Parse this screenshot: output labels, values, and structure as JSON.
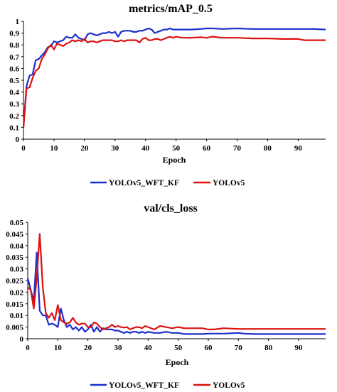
{
  "chart_data": [
    {
      "type": "line",
      "title": "metrics/mAP_0.5",
      "xlabel": "Epoch",
      "ylabel": "",
      "xlim": [
        0,
        99
      ],
      "ylim": [
        0,
        1
      ],
      "xticks": [
        0,
        10,
        20,
        30,
        40,
        50,
        60,
        70,
        80,
        90
      ],
      "yticks": [
        0,
        0.1,
        0.2,
        0.3,
        0.4,
        0.5,
        0.6,
        0.7,
        0.8,
        0.9,
        1
      ],
      "grid": false,
      "legend_position": "bottom",
      "series": [
        {
          "name": "YOLOv5_WFT_KF",
          "color": "#1c2fcc",
          "points": [
            [
              0,
              0.1
            ],
            [
              1,
              0.45
            ],
            [
              2,
              0.54
            ],
            [
              3,
              0.55
            ],
            [
              4,
              0.67
            ],
            [
              5,
              0.68
            ],
            [
              6,
              0.71
            ],
            [
              7,
              0.74
            ],
            [
              8,
              0.78
            ],
            [
              9,
              0.79
            ],
            [
              10,
              0.83
            ],
            [
              11,
              0.82
            ],
            [
              12,
              0.83
            ],
            [
              13,
              0.84
            ],
            [
              14,
              0.87
            ],
            [
              15,
              0.86
            ],
            [
              16,
              0.86
            ],
            [
              17,
              0.89
            ],
            [
              18,
              0.86
            ],
            [
              19,
              0.85
            ],
            [
              20,
              0.84
            ],
            [
              21,
              0.89
            ],
            [
              22,
              0.9
            ],
            [
              23,
              0.89
            ],
            [
              24,
              0.88
            ],
            [
              25,
              0.89
            ],
            [
              26,
              0.9
            ],
            [
              27,
              0.9
            ],
            [
              28,
              0.91
            ],
            [
              29,
              0.9
            ],
            [
              30,
              0.91
            ],
            [
              31,
              0.87
            ],
            [
              32,
              0.91
            ],
            [
              33,
              0.92
            ],
            [
              34,
              0.92
            ],
            [
              35,
              0.92
            ],
            [
              36,
              0.91
            ],
            [
              37,
              0.91
            ],
            [
              38,
              0.92
            ],
            [
              39,
              0.92
            ],
            [
              40,
              0.93
            ],
            [
              41,
              0.94
            ],
            [
              42,
              0.93
            ],
            [
              43,
              0.9
            ],
            [
              44,
              0.91
            ],
            [
              45,
              0.92
            ],
            [
              46,
              0.93
            ],
            [
              47,
              0.93
            ],
            [
              48,
              0.94
            ],
            [
              49,
              0.93
            ],
            [
              50,
              0.93
            ],
            [
              52,
              0.93
            ],
            [
              55,
              0.93
            ],
            [
              58,
              0.935
            ],
            [
              60,
              0.94
            ],
            [
              62,
              0.94
            ],
            [
              65,
              0.935
            ],
            [
              70,
              0.94
            ],
            [
              75,
              0.935
            ],
            [
              80,
              0.935
            ],
            [
              85,
              0.935
            ],
            [
              90,
              0.935
            ],
            [
              95,
              0.935
            ],
            [
              99,
              0.93
            ]
          ]
        },
        {
          "name": "YOLOv5",
          "color": "#dd1111",
          "points": [
            [
              0,
              0.1
            ],
            [
              1,
              0.43
            ],
            [
              2,
              0.44
            ],
            [
              3,
              0.52
            ],
            [
              4,
              0.58
            ],
            [
              5,
              0.6
            ],
            [
              6,
              0.68
            ],
            [
              7,
              0.72
            ],
            [
              8,
              0.77
            ],
            [
              9,
              0.8
            ],
            [
              10,
              0.76
            ],
            [
              11,
              0.81
            ],
            [
              12,
              0.8
            ],
            [
              13,
              0.79
            ],
            [
              14,
              0.81
            ],
            [
              15,
              0.82
            ],
            [
              16,
              0.84
            ],
            [
              17,
              0.83
            ],
            [
              18,
              0.84
            ],
            [
              19,
              0.83
            ],
            [
              20,
              0.85
            ],
            [
              21,
              0.82
            ],
            [
              22,
              0.83
            ],
            [
              23,
              0.83
            ],
            [
              24,
              0.82
            ],
            [
              25,
              0.83
            ],
            [
              26,
              0.84
            ],
            [
              27,
              0.84
            ],
            [
              28,
              0.84
            ],
            [
              29,
              0.84
            ],
            [
              30,
              0.83
            ],
            [
              31,
              0.83
            ],
            [
              32,
              0.84
            ],
            [
              33,
              0.83
            ],
            [
              34,
              0.84
            ],
            [
              35,
              0.84
            ],
            [
              36,
              0.84
            ],
            [
              37,
              0.84
            ],
            [
              38,
              0.82
            ],
            [
              39,
              0.85
            ],
            [
              40,
              0.86
            ],
            [
              41,
              0.84
            ],
            [
              42,
              0.84
            ],
            [
              43,
              0.85
            ],
            [
              44,
              0.85
            ],
            [
              45,
              0.84
            ],
            [
              46,
              0.85
            ],
            [
              47,
              0.86
            ],
            [
              48,
              0.87
            ],
            [
              49,
              0.86
            ],
            [
              50,
              0.87
            ],
            [
              52,
              0.86
            ],
            [
              55,
              0.86
            ],
            [
              58,
              0.865
            ],
            [
              60,
              0.86
            ],
            [
              62,
              0.87
            ],
            [
              65,
              0.86
            ],
            [
              70,
              0.86
            ],
            [
              75,
              0.855
            ],
            [
              80,
              0.855
            ],
            [
              85,
              0.85
            ],
            [
              90,
              0.85
            ],
            [
              92,
              0.84
            ],
            [
              95,
              0.84
            ],
            [
              99,
              0.84
            ]
          ]
        }
      ]
    },
    {
      "type": "line",
      "title": "val/cls_loss",
      "xlabel": "Epoch",
      "ylabel": "",
      "xlim": [
        0,
        99
      ],
      "ylim": [
        0,
        0.05
      ],
      "xticks": [
        0,
        10,
        20,
        30,
        40,
        50,
        60,
        70,
        80,
        90
      ],
      "yticks": [
        0,
        0.005,
        0.01,
        0.015,
        0.02,
        0.025,
        0.03,
        0.035,
        0.04,
        0.045,
        0.05
      ],
      "grid": false,
      "legend_position": "bottom",
      "series": [
        {
          "name": "YOLOv5_WFT_KF",
          "color": "#1c2fcc",
          "points": [
            [
              0,
              0.026
            ],
            [
              1,
              0.021
            ],
            [
              2,
              0.016
            ],
            [
              3,
              0.037
            ],
            [
              4,
              0.012
            ],
            [
              5,
              0.01
            ],
            [
              6,
              0.01
            ],
            [
              7,
              0.006
            ],
            [
              8,
              0.0065
            ],
            [
              9,
              0.006
            ],
            [
              10,
              0.005
            ],
            [
              11,
              0.013
            ],
            [
              12,
              0.008
            ],
            [
              13,
              0.005
            ],
            [
              14,
              0.006
            ],
            [
              15,
              0.004
            ],
            [
              16,
              0.005
            ],
            [
              17,
              0.0035
            ],
            [
              18,
              0.005
            ],
            [
              19,
              0.003
            ],
            [
              20,
              0.004
            ],
            [
              21,
              0.006
            ],
            [
              22,
              0.003
            ],
            [
              23,
              0.005
            ],
            [
              24,
              0.003
            ],
            [
              25,
              0.0045
            ],
            [
              26,
              0.004
            ],
            [
              27,
              0.004
            ],
            [
              28,
              0.004
            ],
            [
              29,
              0.0035
            ],
            [
              30,
              0.0035
            ],
            [
              31,
              0.003
            ],
            [
              32,
              0.0025
            ],
            [
              33,
              0.003
            ],
            [
              34,
              0.0025
            ],
            [
              35,
              0.003
            ],
            [
              36,
              0.003
            ],
            [
              37,
              0.0025
            ],
            [
              38,
              0.003
            ],
            [
              39,
              0.0025
            ],
            [
              40,
              0.003
            ],
            [
              42,
              0.0025
            ],
            [
              44,
              0.0025
            ],
            [
              46,
              0.003
            ],
            [
              48,
              0.0025
            ],
            [
              50,
              0.0025
            ],
            [
              52,
              0.002
            ],
            [
              55,
              0.002
            ],
            [
              58,
              0.002
            ],
            [
              60,
              0.0022
            ],
            [
              62,
              0.0022
            ],
            [
              65,
              0.0022
            ],
            [
              70,
              0.0025
            ],
            [
              72,
              0.0022
            ],
            [
              75,
              0.002
            ],
            [
              80,
              0.002
            ],
            [
              85,
              0.002
            ],
            [
              90,
              0.002
            ],
            [
              95,
              0.002
            ],
            [
              99,
              0.002
            ]
          ]
        },
        {
          "name": "YOLOv5",
          "color": "#dd1111",
          "points": [
            [
              0,
              0.022
            ],
            [
              1,
              0.021
            ],
            [
              2,
              0.013
            ],
            [
              3,
              0.026
            ],
            [
              4,
              0.045
            ],
            [
              5,
              0.022
            ],
            [
              6,
              0.011
            ],
            [
              7,
              0.009
            ],
            [
              8,
              0.011
            ],
            [
              9,
              0.008
            ],
            [
              10,
              0.0145
            ],
            [
              11,
              0.008
            ],
            [
              12,
              0.007
            ],
            [
              13,
              0.0065
            ],
            [
              14,
              0.007
            ],
            [
              15,
              0.009
            ],
            [
              16,
              0.007
            ],
            [
              17,
              0.006
            ],
            [
              18,
              0.0065
            ],
            [
              19,
              0.0065
            ],
            [
              20,
              0.005
            ],
            [
              21,
              0.005
            ],
            [
              22,
              0.007
            ],
            [
              23,
              0.0065
            ],
            [
              24,
              0.005
            ],
            [
              25,
              0.004
            ],
            [
              26,
              0.0045
            ],
            [
              27,
              0.005
            ],
            [
              28,
              0.006
            ],
            [
              29,
              0.005
            ],
            [
              30,
              0.0055
            ],
            [
              31,
              0.005
            ],
            [
              32,
              0.0048
            ],
            [
              33,
              0.005
            ],
            [
              34,
              0.004
            ],
            [
              35,
              0.0045
            ],
            [
              36,
              0.005
            ],
            [
              37,
              0.005
            ],
            [
              38,
              0.0045
            ],
            [
              39,
              0.0055
            ],
            [
              40,
              0.005
            ],
            [
              42,
              0.004
            ],
            [
              44,
              0.0055
            ],
            [
              46,
              0.005
            ],
            [
              48,
              0.0045
            ],
            [
              50,
              0.005
            ],
            [
              52,
              0.0045
            ],
            [
              55,
              0.0045
            ],
            [
              58,
              0.0045
            ],
            [
              60,
              0.004
            ],
            [
              62,
              0.004
            ],
            [
              65,
              0.0045
            ],
            [
              70,
              0.0042
            ],
            [
              75,
              0.0042
            ],
            [
              80,
              0.0042
            ],
            [
              85,
              0.0042
            ],
            [
              90,
              0.0042
            ],
            [
              95,
              0.0042
            ],
            [
              99,
              0.0042
            ]
          ]
        }
      ]
    }
  ]
}
